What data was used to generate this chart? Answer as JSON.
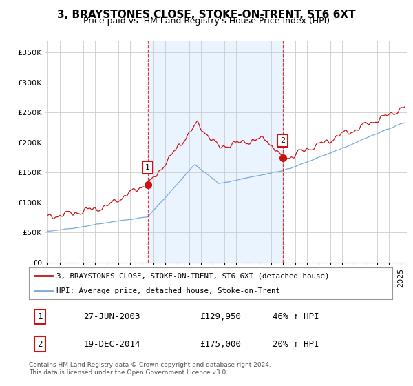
{
  "title": "3, BRAYSTONES CLOSE, STOKE-ON-TRENT, ST6 6XT",
  "subtitle": "Price paid vs. HM Land Registry's House Price Index (HPI)",
  "ytick_values": [
    0,
    50000,
    100000,
    150000,
    200000,
    250000,
    300000,
    350000
  ],
  "ylim": [
    0,
    370000
  ],
  "xlim_start": 1994.8,
  "xlim_end": 2025.5,
  "transaction1_date": 2003.49,
  "transaction1_price": 129950,
  "transaction2_date": 2014.97,
  "transaction2_price": 175000,
  "red_color": "#cc1111",
  "blue_color": "#7aaadd",
  "blue_fill_color": "#ddeeff",
  "vline_color": "#cc1111",
  "legend_entry1": "3, BRAYSTONES CLOSE, STOKE-ON-TRENT, ST6 6XT (detached house)",
  "legend_entry2": "HPI: Average price, detached house, Stoke-on-Trent",
  "table_row1": [
    "1",
    "27-JUN-2003",
    "£129,950",
    "46% ↑ HPI"
  ],
  "table_row2": [
    "2",
    "19-DEC-2014",
    "£175,000",
    "20% ↑ HPI"
  ],
  "footer": "Contains HM Land Registry data © Crown copyright and database right 2024.\nThis data is licensed under the Open Government Licence v3.0.",
  "background_color": "#ffffff",
  "grid_color": "#cccccc",
  "title_fontsize": 11,
  "subtitle_fontsize": 9,
  "tick_fontsize": 8
}
